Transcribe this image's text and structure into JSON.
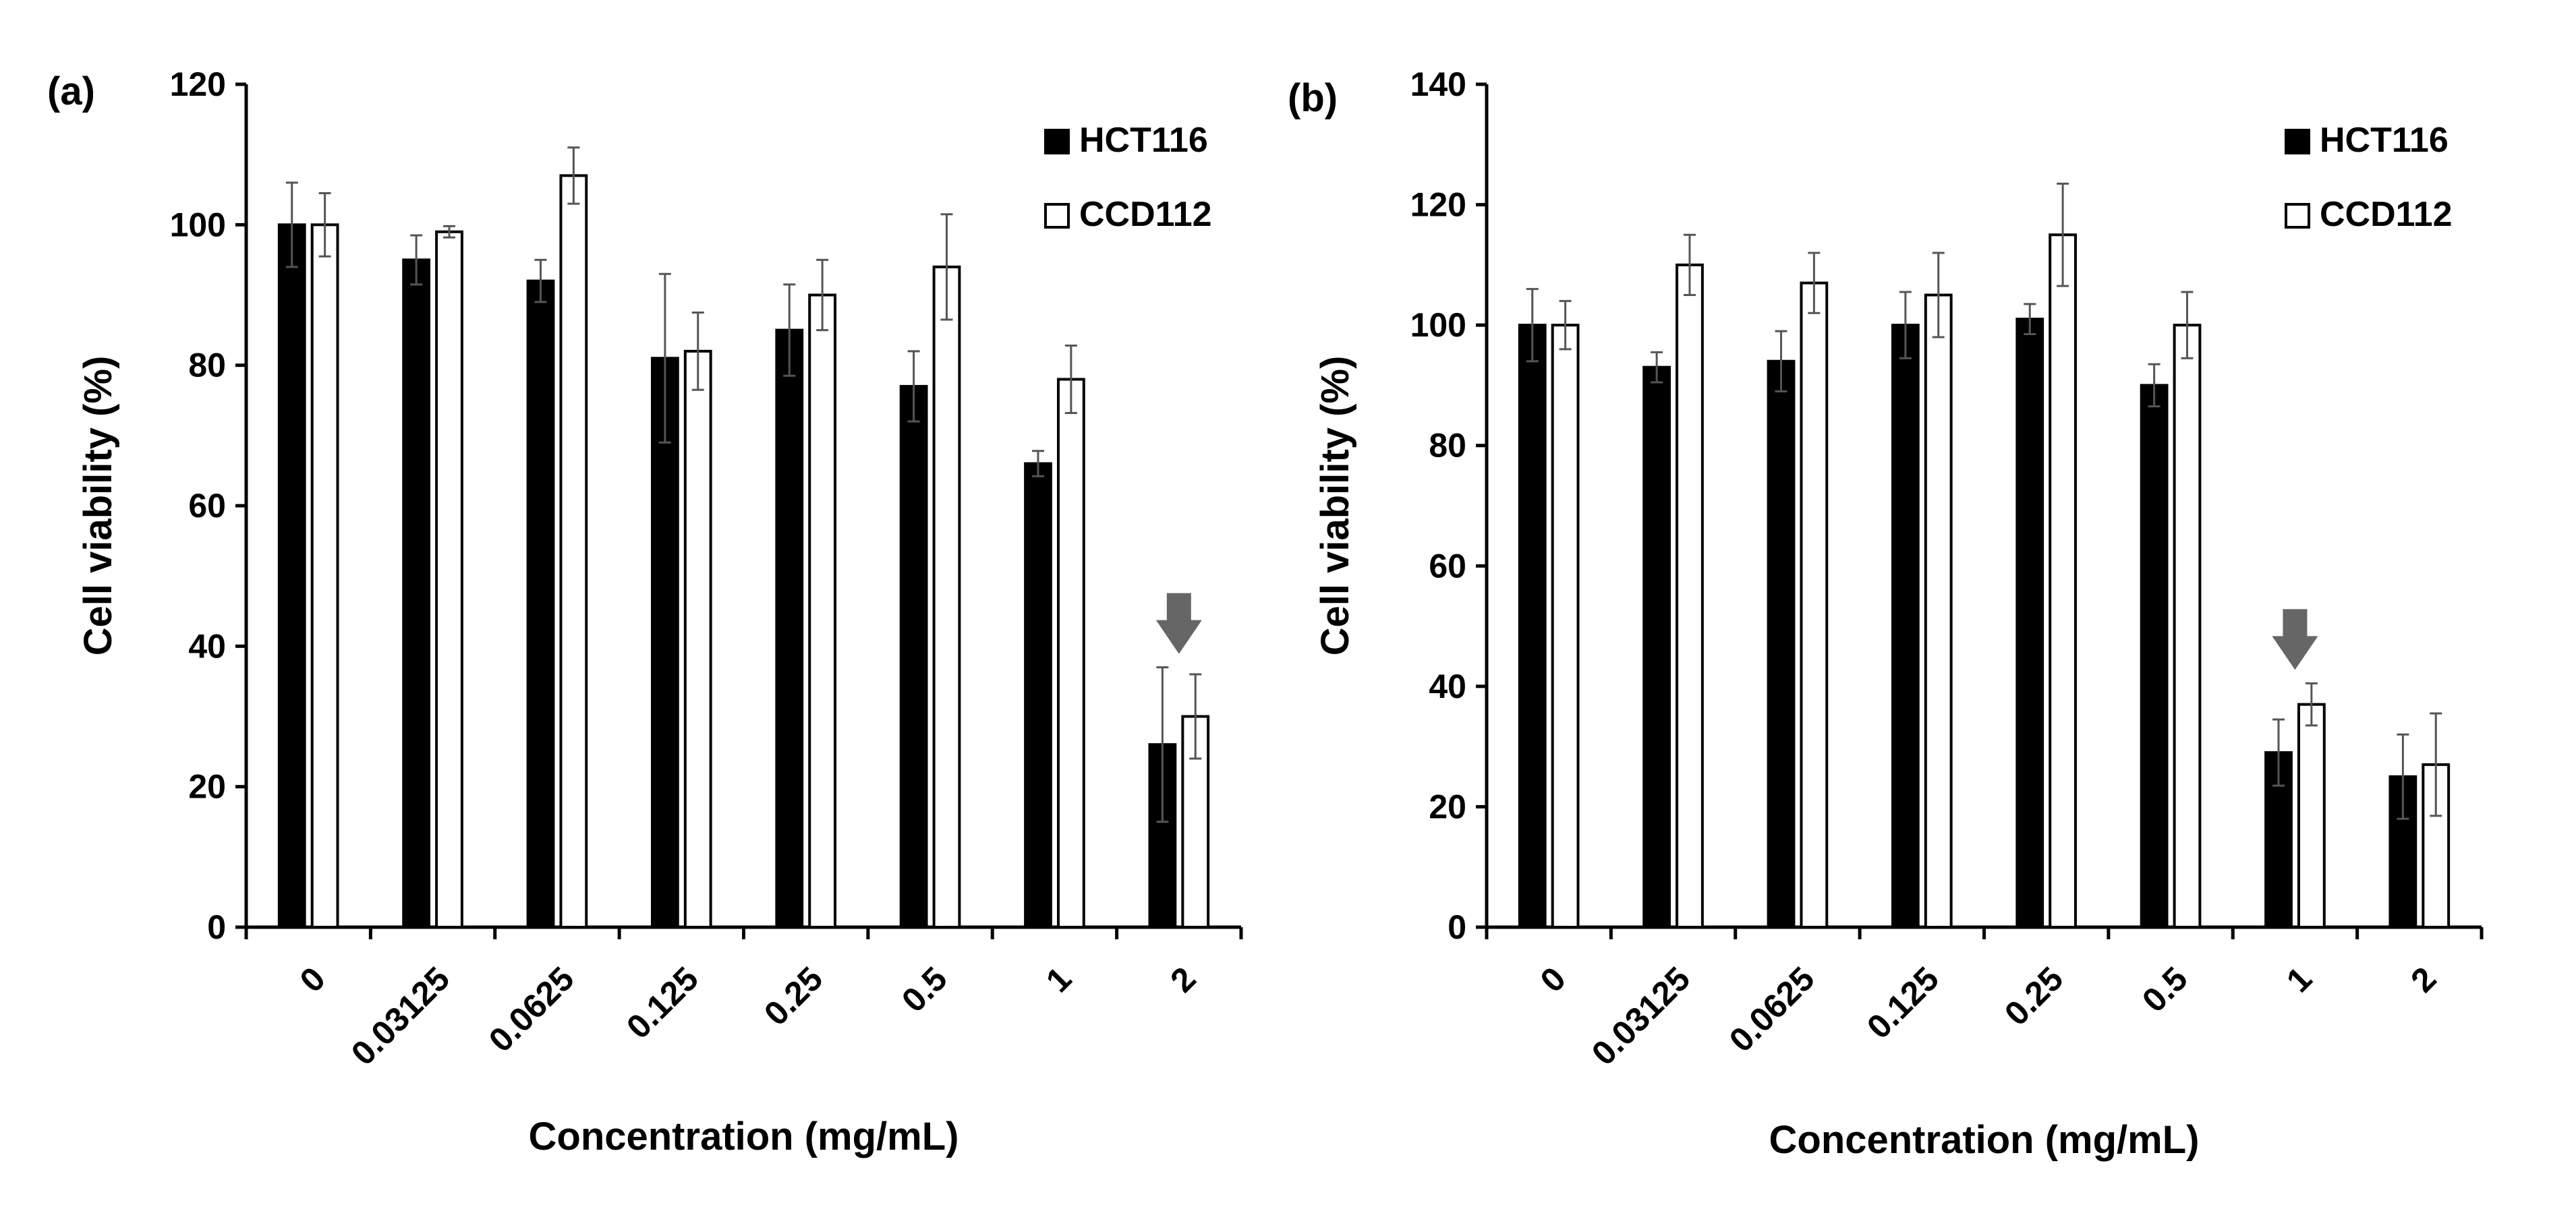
{
  "figure": {
    "panels": [
      "(a)",
      "(b)"
    ]
  },
  "chart_data": [
    {
      "type": "bar",
      "panel_label": "(a)",
      "categories": [
        "0",
        "0.03125",
        "0.0625",
        "0.125",
        "0.25",
        "0.5",
        "1",
        "2"
      ],
      "xlabel": "Concentration (mg/mL)",
      "ylabel": "Cell viability (%)",
      "ylim": [
        0,
        120
      ],
      "yticks": [
        "0",
        "20",
        "40",
        "60",
        "80",
        "100",
        "120"
      ],
      "legend_position": "top-right",
      "highlight_category": "2",
      "series": [
        {
          "name": "HCT116",
          "color": "#000000",
          "values": [
            100,
            95,
            92,
            81,
            85,
            77,
            66,
            26
          ],
          "errors": [
            6,
            3.5,
            3,
            12,
            6.5,
            5,
            1.8,
            11
          ]
        },
        {
          "name": "CCD112",
          "color": "#ffffff",
          "values": [
            100,
            99,
            107,
            82,
            90,
            94,
            78,
            30
          ],
          "errors": [
            4.5,
            0.8,
            4,
            5.5,
            5,
            7.5,
            4.8,
            6
          ]
        }
      ]
    },
    {
      "type": "bar",
      "panel_label": "(b)",
      "categories": [
        "0",
        "0.03125",
        "0.0625",
        "0.125",
        "0.25",
        "0.5",
        "1",
        "2"
      ],
      "xlabel": "Concentration (mg/mL)",
      "ylabel": "Cell viability (%)",
      "ylim": [
        0,
        140
      ],
      "yticks": [
        "0",
        "20",
        "40",
        "60",
        "80",
        "100",
        "120",
        "140"
      ],
      "legend_position": "top-right",
      "highlight_category": "1",
      "series": [
        {
          "name": "HCT116",
          "color": "#000000",
          "values": [
            100,
            93,
            94,
            100,
            101,
            90,
            29,
            25
          ],
          "errors": [
            6,
            2.5,
            5,
            5.5,
            2.5,
            3.5,
            5.5,
            7
          ]
        },
        {
          "name": "CCD112",
          "color": "#ffffff",
          "values": [
            100,
            110,
            107,
            105,
            115,
            100,
            37,
            27
          ],
          "errors": [
            4,
            5,
            5,
            7,
            8.5,
            5.5,
            3.5,
            8.5
          ]
        }
      ]
    }
  ]
}
